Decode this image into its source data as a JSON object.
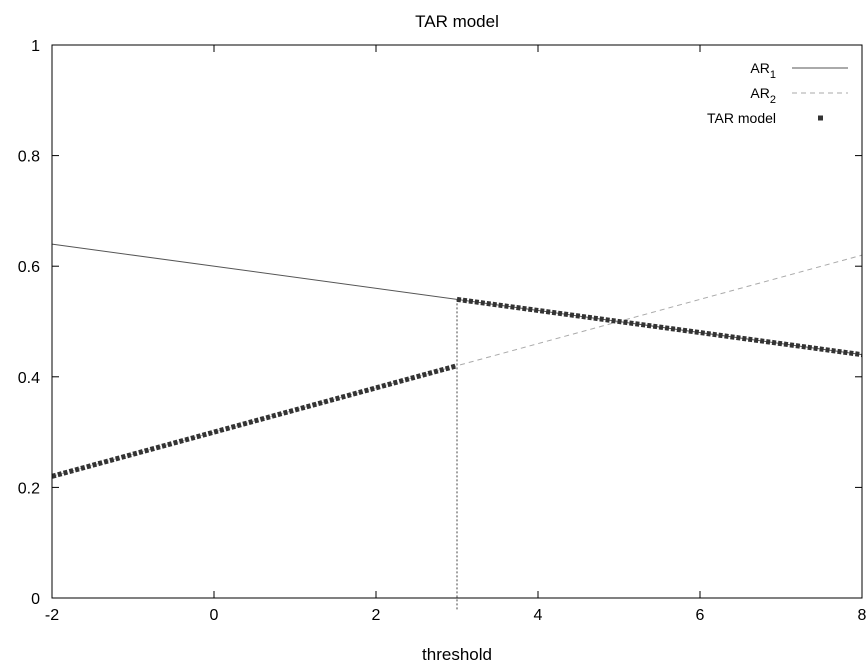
{
  "chart_data": {
    "type": "line",
    "title": "TAR model",
    "xlabel": "threshold",
    "ylabel": "",
    "xlim": [
      -2,
      8
    ],
    "ylim": [
      0,
      1
    ],
    "xticks": [
      "-2",
      "0",
      "2",
      "4",
      "6",
      "8"
    ],
    "yticks": [
      "0",
      "0.2",
      "0.4",
      "0.6",
      "0.8",
      "1"
    ],
    "xtick_values": [
      -2,
      0,
      2,
      4,
      6,
      8
    ],
    "ytick_values": [
      0,
      0.2,
      0.4,
      0.6,
      0.8,
      1
    ],
    "threshold": 3,
    "legend_position": "top-right",
    "grid": false,
    "series": [
      {
        "name": "AR",
        "name_subscript": "1",
        "style": "solid",
        "color": "#555555",
        "x": [
          -2,
          8
        ],
        "y": [
          0.64,
          0.44
        ]
      },
      {
        "name": "AR",
        "name_subscript": "2",
        "style": "dashed",
        "color": "#aaaaaa",
        "x": [
          -2,
          8
        ],
        "y": [
          0.22,
          0.62
        ]
      },
      {
        "name": "TAR model",
        "style": "dotted-square",
        "color": "#333333",
        "segments": [
          {
            "x": [
              -2,
              3
            ],
            "y": [
              0.22,
              0.42
            ]
          },
          {
            "x": [
              3,
              8
            ],
            "y": [
              0.54,
              0.44
            ]
          }
        ]
      }
    ]
  }
}
